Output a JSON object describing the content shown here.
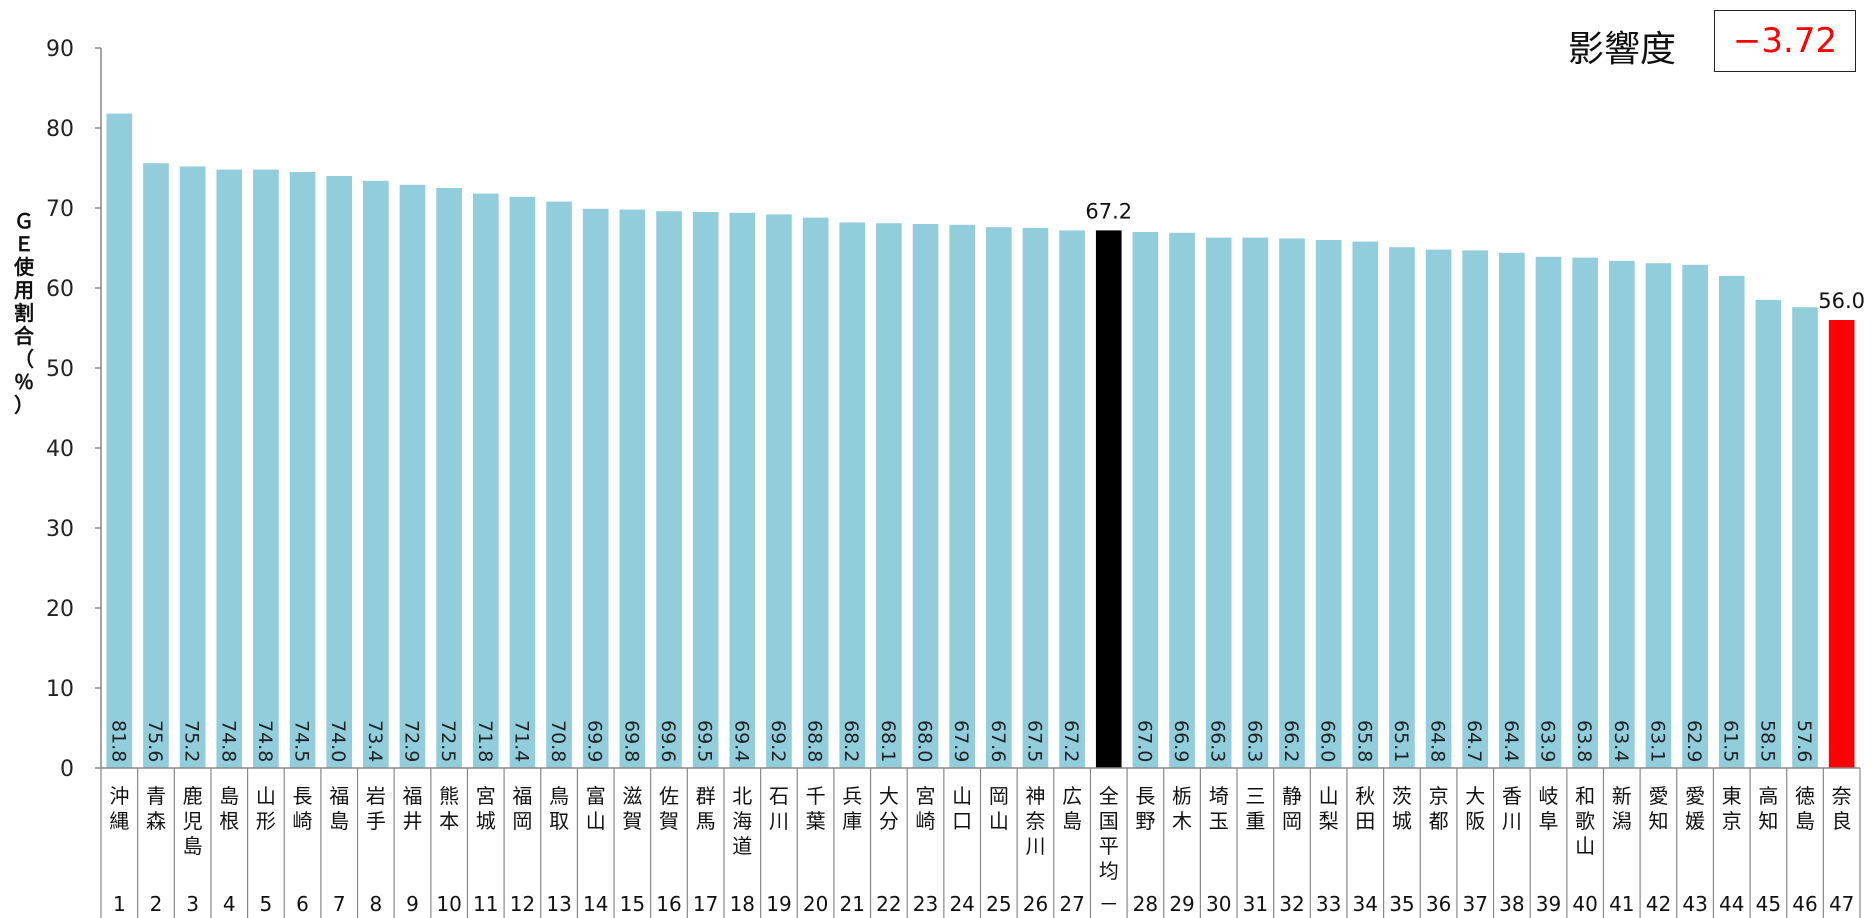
{
  "impact": {
    "label": "影響度",
    "value": "−3.72"
  },
  "chart_data": {
    "type": "bar",
    "ylabel": "ＧＥ使用割合（％）",
    "ylim": [
      0,
      90
    ],
    "yticks": [
      0,
      10,
      20,
      30,
      40,
      50,
      60,
      70,
      80,
      90
    ],
    "categories": [
      "沖縄",
      "青森",
      "鹿児島",
      "島根",
      "山形",
      "長崎",
      "福島",
      "岩手",
      "福井",
      "熊本",
      "宮城",
      "福岡",
      "鳥取",
      "富山",
      "滋賀",
      "佐賀",
      "群馬",
      "北海道",
      "石川",
      "千葉",
      "兵庫",
      "大分",
      "宮崎",
      "山口",
      "岡山",
      "神奈川",
      "広島",
      "全国平均",
      "長野",
      "栃木",
      "埼玉",
      "三重",
      "静岡",
      "山梨",
      "秋田",
      "茨城",
      "京都",
      "大阪",
      "香川",
      "岐阜",
      "和歌山",
      "新潟",
      "愛知",
      "愛媛",
      "東京",
      "高知",
      "徳島",
      "奈良"
    ],
    "ranks": [
      "1",
      "2",
      "3",
      "4",
      "5",
      "6",
      "7",
      "8",
      "9",
      "10",
      "11",
      "12",
      "13",
      "14",
      "15",
      "16",
      "17",
      "18",
      "19",
      "20",
      "21",
      "22",
      "23",
      "24",
      "25",
      "26",
      "27",
      "－",
      "28",
      "29",
      "30",
      "31",
      "32",
      "33",
      "34",
      "35",
      "36",
      "37",
      "38",
      "39",
      "40",
      "41",
      "42",
      "43",
      "44",
      "45",
      "46",
      "47"
    ],
    "values": [
      81.8,
      75.6,
      75.2,
      74.8,
      74.8,
      74.5,
      74.0,
      73.4,
      72.9,
      72.5,
      71.8,
      71.4,
      70.8,
      69.9,
      69.8,
      69.6,
      69.5,
      69.4,
      69.2,
      68.8,
      68.2,
      68.1,
      68.0,
      67.9,
      67.6,
      67.5,
      67.2,
      67.2,
      67.0,
      66.9,
      66.3,
      66.3,
      66.2,
      66.0,
      65.8,
      65.1,
      64.8,
      64.7,
      64.4,
      63.9,
      63.8,
      63.4,
      63.1,
      62.9,
      61.5,
      58.5,
      57.6,
      56.0
    ],
    "value_labels": [
      "81.8",
      "75.6",
      "75.2",
      "74.8",
      "74.8",
      "74.5",
      "74.0",
      "73.4",
      "72.9",
      "72.5",
      "71.8",
      "71.4",
      "70.8",
      "69.9",
      "69.8",
      "69.6",
      "69.5",
      "69.4",
      "69.2",
      "68.8",
      "68.2",
      "68.1",
      "68.0",
      "67.9",
      "67.6",
      "67.5",
      "67.2",
      "67.2",
      "67.0",
      "66.9",
      "66.3",
      "66.3",
      "66.2",
      "66.0",
      "65.8",
      "65.1",
      "64.8",
      "64.7",
      "64.4",
      "63.9",
      "63.8",
      "63.4",
      "63.1",
      "62.9",
      "61.5",
      "58.5",
      "57.6",
      "56.0"
    ],
    "highlight": {
      "national_average": {
        "index": 27,
        "color": "#000000",
        "label": "67.2"
      },
      "target": {
        "index": 47,
        "color": "#ff0000",
        "label": "56.0"
      }
    },
    "bar_color": "#92cddc",
    "grid": false
  }
}
